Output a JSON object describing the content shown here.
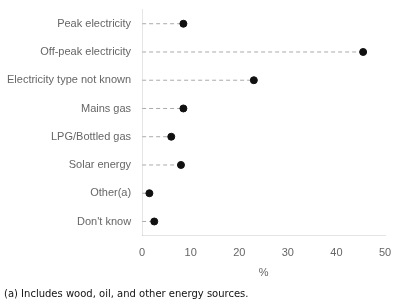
{
  "chart_data": {
    "type": "lollipop",
    "orientation": "horizontal",
    "categories": [
      "Peak electricity",
      "Off-peak electricity",
      "Electricity type not known",
      "Mains gas",
      "LPG/Bottled gas",
      "Solar energy",
      "Other(a)",
      "Don't know"
    ],
    "values": [
      8.5,
      45.5,
      23.0,
      8.5,
      6.0,
      8.0,
      1.5,
      2.5
    ],
    "xlim": [
      0,
      50
    ],
    "xticks": [
      0,
      10,
      20,
      30,
      40,
      50
    ],
    "xlabel": "%",
    "color": "#111111",
    "line_style": "dashed",
    "marker": "circle",
    "grid": false,
    "annotations": [
      "(a) Includes wood, oil, and other energy sources."
    ]
  }
}
